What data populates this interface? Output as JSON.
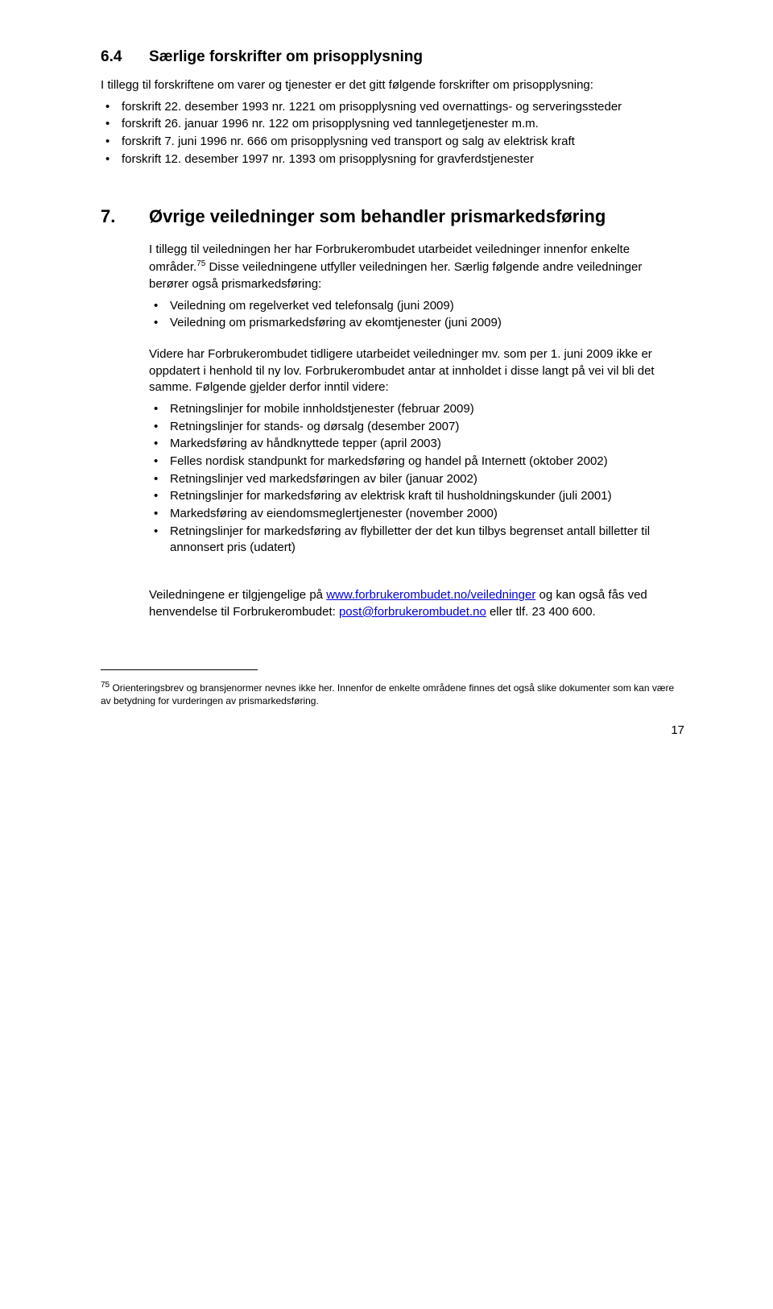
{
  "section64": {
    "num": "6.4",
    "title": "Særlige forskrifter om prisopplysning",
    "intro": "I tillegg til forskriftene om varer og tjenester er det gitt følgende forskrifter om prisopplysning:",
    "bullets": [
      "forskrift 22. desember 1993 nr. 1221 om prisopplysning ved overnattings- og serveringssteder",
      "forskrift 26. januar 1996 nr. 122 om prisopplysning ved tannlegetjenester m.m.",
      "forskrift 7. juni 1996 nr. 666 om prisopplysning ved transport og salg av elektrisk kraft",
      "forskrift 12. desember 1997 nr. 1393 om prisopplysning for gravferdstjenester"
    ]
  },
  "chapter7": {
    "num": "7.",
    "title": "Øvrige veiledninger som behandler prismarkedsføring",
    "para1_a": "I tillegg til veiledningen her har Forbrukerombudet utarbeidet veiledninger innenfor enkelte områder.",
    "fn_marker": "75",
    "para1_b": " Disse veiledningene utfyller veiledningen her. Særlig følgende andre veiledninger berører også prismarkedsføring:",
    "bullets1": [
      "Veiledning om regelverket ved telefonsalg (juni 2009)",
      "Veiledning om prismarkedsføring av ekomtjenester (juni 2009)"
    ],
    "para2": "Videre har Forbrukerombudet tidligere utarbeidet veiledninger mv. som per 1. juni 2009 ikke er oppdatert i henhold til ny lov. Forbrukerombudet antar at innholdet i disse langt på vei vil bli det samme. Følgende gjelder derfor inntil videre:",
    "bullets2": [
      "Retningslinjer for mobile innholdstjenester (februar 2009)",
      "Retningslinjer for stands- og dørsalg (desember 2007)",
      "Markedsføring av håndknyttede tepper (april 2003)",
      "Felles nordisk standpunkt for markedsføring og handel på Internett (oktober 2002)",
      "Retningslinjer ved markedsføringen av biler (januar 2002)",
      "Retningslinjer for markedsføring av elektrisk kraft til husholdningskunder (juli 2001)",
      "Markedsføring av eiendomsmeglertjenester (november 2000)",
      "Retningslinjer for markedsføring av flybilletter der det kun tilbys begrenset antall billetter til annonsert pris (udatert)"
    ],
    "closing_a": "Veiledningene er tilgjengelige på ",
    "link1": "www.forbrukerombudet.no/veiledninger",
    "closing_b": " og kan også fås ved henvendelse til Forbrukerombudet: ",
    "link2": "post@forbrukerombudet.no",
    "closing_c": " eller tlf. 23 400 600."
  },
  "footnote": {
    "marker": "75",
    "text": " Orienteringsbrev og bransjenormer nevnes ikke her. Innenfor de enkelte områdene finnes det også slike dokumenter som kan være av betydning for vurderingen av prismarkedsføring."
  },
  "page_number": "17"
}
